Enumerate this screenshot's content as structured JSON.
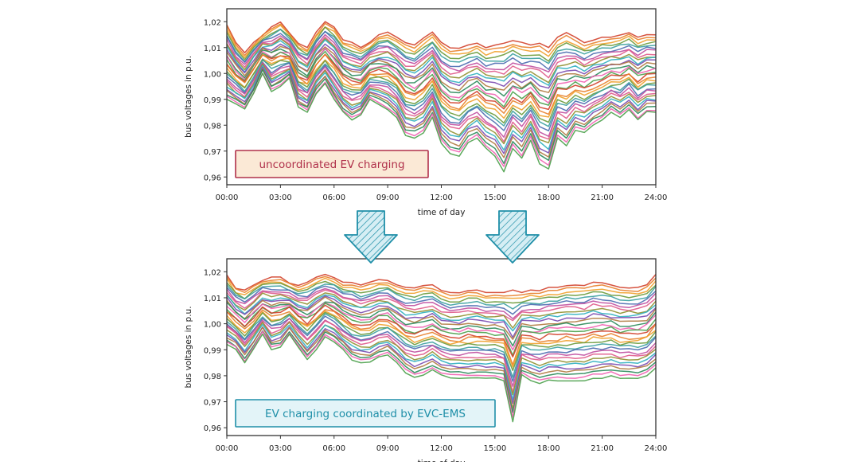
{
  "chart_data": [
    {
      "type": "line",
      "xlabel": "time of day",
      "ylabel": "bus voltages in p.u.",
      "x_ticks": [
        "00:00",
        "03:00",
        "06:00",
        "09:00",
        "12:00",
        "15:00",
        "18:00",
        "21:00",
        "24:00"
      ],
      "y_ticks": [
        "1,02",
        "1,01",
        "1,00",
        "0,99",
        "0,98",
        "0,97",
        "0,96"
      ],
      "xlim": [
        0,
        24
      ],
      "ylim": [
        0.957,
        1.025
      ],
      "grid": false,
      "annotation": "uncoordinated EV charging",
      "annotation_color": "#b0304a",
      "annotation_fill": "#fbe9d6",
      "series_count": 30,
      "x": [
        0,
        0.5,
        1,
        1.5,
        2,
        2.5,
        3,
        3.5,
        4,
        4.5,
        5,
        5.5,
        6,
        6.5,
        7,
        7.5,
        8,
        8.5,
        9,
        9.5,
        10,
        10.5,
        11,
        11.5,
        12,
        12.5,
        13,
        13.5,
        14,
        14.5,
        15,
        15.5,
        16,
        16.5,
        17,
        17.5,
        18,
        18.5,
        19,
        19.5,
        20,
        20.5,
        21,
        21.5,
        22,
        22.5,
        23,
        23.5,
        24
      ],
      "upper_envelope": [
        1.019,
        1.012,
        1.008,
        1.012,
        1.015,
        1.018,
        1.02,
        1.016,
        1.012,
        1.01,
        1.016,
        1.02,
        1.018,
        1.013,
        1.012,
        1.01,
        1.012,
        1.015,
        1.016,
        1.014,
        1.012,
        1.011,
        1.014,
        1.016,
        1.012,
        1.01,
        1.01,
        1.011,
        1.012,
        1.01,
        1.011,
        1.012,
        1.013,
        1.012,
        1.011,
        1.012,
        1.01,
        1.014,
        1.016,
        1.014,
        1.012,
        1.013,
        1.014,
        1.014,
        1.015,
        1.016,
        1.014,
        1.015,
        1.015
      ],
      "lower_envelope": [
        0.99,
        0.988,
        0.986,
        0.992,
        1.0,
        0.993,
        0.995,
        0.998,
        0.987,
        0.985,
        0.992,
        0.996,
        0.99,
        0.985,
        0.982,
        0.984,
        0.99,
        0.988,
        0.986,
        0.983,
        0.976,
        0.975,
        0.977,
        0.983,
        0.973,
        0.969,
        0.968,
        0.973,
        0.975,
        0.971,
        0.968,
        0.962,
        0.971,
        0.967,
        0.974,
        0.965,
        0.963,
        0.975,
        0.972,
        0.978,
        0.977,
        0.98,
        0.982,
        0.985,
        0.983,
        0.986,
        0.982,
        0.985,
        0.985
      ]
    },
    {
      "type": "line",
      "xlabel": "time of day",
      "ylabel": "bus voltages in p.u.",
      "x_ticks": [
        "00:00",
        "03:00",
        "06:00",
        "09:00",
        "12:00",
        "15:00",
        "18:00",
        "21:00",
        "24:00"
      ],
      "y_ticks": [
        "1,02",
        "1,01",
        "1,00",
        "0,99",
        "0,98",
        "0,97",
        "0,96"
      ],
      "xlim": [
        0,
        24
      ],
      "ylim": [
        0.957,
        1.025
      ],
      "grid": false,
      "annotation": "EV charging coordinated by EVC-EMS",
      "annotation_color": "#1f8fa8",
      "annotation_fill": "#e3f4f8",
      "series_count": 30,
      "x": [
        0,
        0.5,
        1,
        1.5,
        2,
        2.5,
        3,
        3.5,
        4,
        4.5,
        5,
        5.5,
        6,
        6.5,
        7,
        7.5,
        8,
        8.5,
        9,
        9.5,
        10,
        10.5,
        11,
        11.5,
        12,
        12.5,
        13,
        13.5,
        14,
        14.5,
        15,
        15.5,
        16,
        16.5,
        17,
        17.5,
        18,
        18.5,
        19,
        19.5,
        20,
        20.5,
        21,
        21.5,
        22,
        22.5,
        23,
        23.5,
        24
      ],
      "upper_envelope": [
        1.019,
        1.014,
        1.013,
        1.015,
        1.017,
        1.018,
        1.018,
        1.016,
        1.015,
        1.016,
        1.018,
        1.019,
        1.018,
        1.016,
        1.016,
        1.015,
        1.016,
        1.017,
        1.017,
        1.015,
        1.014,
        1.014,
        1.015,
        1.015,
        1.013,
        1.012,
        1.012,
        1.013,
        1.013,
        1.012,
        1.012,
        1.012,
        1.013,
        1.012,
        1.013,
        1.013,
        1.014,
        1.014,
        1.015,
        1.015,
        1.015,
        1.016,
        1.016,
        1.015,
        1.014,
        1.014,
        1.014,
        1.015,
        1.019
      ],
      "lower_envelope": [
        0.992,
        0.99,
        0.985,
        0.99,
        0.996,
        0.99,
        0.991,
        0.996,
        0.991,
        0.986,
        0.99,
        0.995,
        0.993,
        0.99,
        0.986,
        0.985,
        0.985,
        0.987,
        0.988,
        0.985,
        0.981,
        0.979,
        0.98,
        0.982,
        0.98,
        0.979,
        0.979,
        0.979,
        0.979,
        0.979,
        0.979,
        0.978,
        0.962,
        0.98,
        0.978,
        0.977,
        0.978,
        0.978,
        0.978,
        0.978,
        0.978,
        0.979,
        0.979,
        0.98,
        0.979,
        0.979,
        0.979,
        0.98,
        0.983
      ]
    }
  ],
  "arrows": {
    "stroke": "#1f8fa8",
    "fill": "#d6eef4",
    "count": 2
  },
  "series_palette": [
    "#d1402a",
    "#e87f2a",
    "#f0a02a",
    "#6a9a3a",
    "#3aa0a0",
    "#4a6ab0",
    "#c04ea0",
    "#e05a8a",
    "#909030",
    "#30b0c0",
    "#7a4ab0",
    "#b07a40",
    "#2a8a5a",
    "#f060b0",
    "#4aa04a"
  ]
}
